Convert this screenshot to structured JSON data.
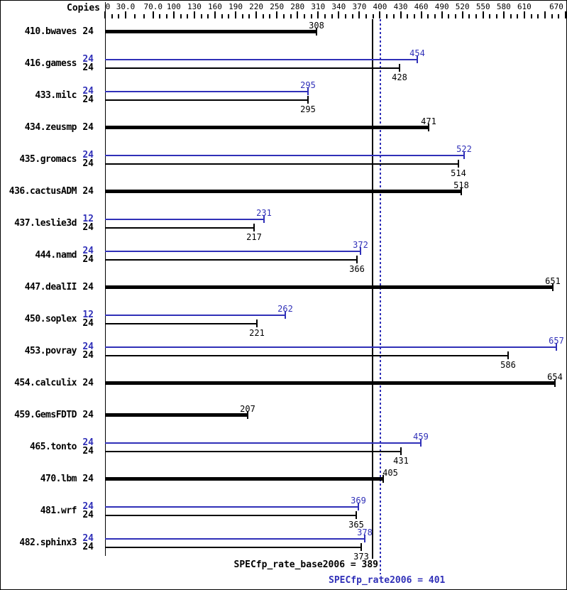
{
  "colors": {
    "peak_blue": "#3030b8",
    "base_black": "#000000",
    "background": "#ffffff"
  },
  "header": {
    "copies_label": "Copies"
  },
  "footer": {
    "base_label": "SPECfp_rate_base2006 = 389",
    "peak_label": "SPECfp_rate2006 = 401"
  },
  "chart_data": {
    "type": "bar",
    "orientation": "horizontal",
    "xlim": [
      0,
      670
    ],
    "grid": false,
    "axis_position": "top",
    "axis_major_ticks": [
      {
        "value": 0,
        "label": "0",
        "label_dx": 4
      },
      {
        "value": 30,
        "label": "30.0",
        "label_dx": 0
      },
      {
        "value": 70,
        "label": "70.0",
        "label_dx": 0
      },
      {
        "value": 100,
        "label": "100",
        "label_dx": 0
      },
      {
        "value": 130,
        "label": "130",
        "label_dx": 0
      },
      {
        "value": 160,
        "label": "160",
        "label_dx": 0
      },
      {
        "value": 190,
        "label": "190",
        "label_dx": 0
      },
      {
        "value": 220,
        "label": "220",
        "label_dx": 0
      },
      {
        "value": 250,
        "label": "250",
        "label_dx": 0
      },
      {
        "value": 280,
        "label": "280",
        "label_dx": 0
      },
      {
        "value": 310,
        "label": "310",
        "label_dx": 0
      },
      {
        "value": 340,
        "label": "340",
        "label_dx": 0
      },
      {
        "value": 370,
        "label": "370",
        "label_dx": 0
      },
      {
        "value": 400,
        "label": "400",
        "label_dx": 0
      },
      {
        "value": 430,
        "label": "430",
        "label_dx": 0
      },
      {
        "value": 460,
        "label": "460",
        "label_dx": 0
      },
      {
        "value": 490,
        "label": "490",
        "label_dx": 0
      },
      {
        "value": 520,
        "label": "520",
        "label_dx": 0
      },
      {
        "value": 550,
        "label": "550",
        "label_dx": 0
      },
      {
        "value": 580,
        "label": "580",
        "label_dx": 0
      },
      {
        "value": 610,
        "label": "610",
        "label_dx": 0
      },
      {
        "value": 640,
        "label": "",
        "label_dx": 0
      },
      {
        "value": 670,
        "label": "670",
        "label_dx": -13
      }
    ],
    "benchmarks": [
      {
        "name": "410.bwaves",
        "bars": [
          {
            "run": "base",
            "copies": 24,
            "value": 308
          }
        ]
      },
      {
        "name": "416.gamess",
        "bars": [
          {
            "run": "peak",
            "copies": 24,
            "value": 454
          },
          {
            "run": "base",
            "copies": 24,
            "value": 428
          }
        ]
      },
      {
        "name": "433.milc",
        "bars": [
          {
            "run": "peak",
            "copies": 24,
            "value": 295
          },
          {
            "run": "base",
            "copies": 24,
            "value": 295
          }
        ]
      },
      {
        "name": "434.zeusmp",
        "bars": [
          {
            "run": "base",
            "copies": 24,
            "value": 471
          }
        ]
      },
      {
        "name": "435.gromacs",
        "bars": [
          {
            "run": "peak",
            "copies": 24,
            "value": 522
          },
          {
            "run": "base",
            "copies": 24,
            "value": 514
          }
        ]
      },
      {
        "name": "436.cactusADM",
        "bars": [
          {
            "run": "base",
            "copies": 24,
            "value": 518
          }
        ]
      },
      {
        "name": "437.leslie3d",
        "bars": [
          {
            "run": "peak",
            "copies": 12,
            "value": 231
          },
          {
            "run": "base",
            "copies": 24,
            "value": 217
          }
        ]
      },
      {
        "name": "444.namd",
        "bars": [
          {
            "run": "peak",
            "copies": 24,
            "value": 372
          },
          {
            "run": "base",
            "copies": 24,
            "value": 366
          }
        ]
      },
      {
        "name": "447.dealII",
        "bars": [
          {
            "run": "base",
            "copies": 24,
            "value": 651
          }
        ]
      },
      {
        "name": "450.soplex",
        "bars": [
          {
            "run": "peak",
            "copies": 12,
            "value": 262
          },
          {
            "run": "base",
            "copies": 24,
            "value": 221
          }
        ]
      },
      {
        "name": "453.povray",
        "bars": [
          {
            "run": "peak",
            "copies": 24,
            "value": 657
          },
          {
            "run": "base",
            "copies": 24,
            "value": 586
          }
        ]
      },
      {
        "name": "454.calculix",
        "bars": [
          {
            "run": "base",
            "copies": 24,
            "value": 654
          }
        ]
      },
      {
        "name": "459.GemsFDTD",
        "bars": [
          {
            "run": "base",
            "copies": 24,
            "value": 207
          }
        ]
      },
      {
        "name": "465.tonto",
        "bars": [
          {
            "run": "peak",
            "copies": 24,
            "value": 459
          },
          {
            "run": "base",
            "copies": 24,
            "value": 431
          }
        ]
      },
      {
        "name": "470.lbm",
        "bars": [
          {
            "run": "base",
            "copies": 24,
            "value": 405,
            "label_dx": 10
          }
        ]
      },
      {
        "name": "481.wrf",
        "bars": [
          {
            "run": "peak",
            "copies": 24,
            "value": 369
          },
          {
            "run": "base",
            "copies": 24,
            "value": 365
          }
        ]
      },
      {
        "name": "482.sphinx3",
        "bars": [
          {
            "run": "peak",
            "copies": 24,
            "value": 378
          },
          {
            "run": "base",
            "copies": 24,
            "value": 373
          }
        ]
      }
    ],
    "reference_lines": [
      {
        "name": "SPECfp_rate_base2006",
        "value": 389,
        "style": "solid",
        "color_key": "base_black"
      },
      {
        "name": "SPECfp_rate2006",
        "value": 401,
        "style": "dotted",
        "color_key": "peak_blue"
      }
    ]
  }
}
